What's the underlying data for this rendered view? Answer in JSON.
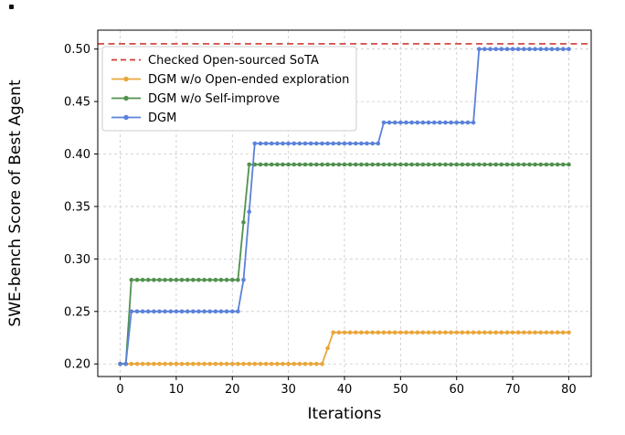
{
  "chart_data": {
    "type": "line",
    "title": "",
    "xlabel": "Iterations",
    "ylabel": "SWE-bench Score of Best Agent",
    "xlim": [
      -4,
      84
    ],
    "ylim": [
      0.188,
      0.518
    ],
    "xticks": [
      0,
      10,
      20,
      30,
      40,
      50,
      60,
      70,
      80
    ],
    "yticks": [
      0.2,
      0.25,
      0.3,
      0.35,
      0.4,
      0.45,
      0.5
    ],
    "grid": true,
    "legend_position": "upper left",
    "legend": [
      "Checked Open-sourced SoTA",
      "DGM w/o Open-ended exploration",
      "DGM w/o Self-improve",
      "DGM"
    ],
    "reference_line": {
      "label": "Checked Open-sourced SoTA",
      "value": 0.505,
      "color": "#cd3b34"
    },
    "x_range": [
      0,
      80
    ],
    "marker_every": 1,
    "series": [
      {
        "name": "DGM w/o Open-ended exploration",
        "color": "#e9a63c",
        "breakpoints": [
          [
            0,
            0.2
          ],
          [
            36,
            0.2
          ],
          [
            38,
            0.23
          ],
          [
            80,
            0.23
          ]
        ]
      },
      {
        "name": "DGM w/o Self-improve",
        "color": "#50914e",
        "breakpoints": [
          [
            0,
            0.2
          ],
          [
            1,
            0.2
          ],
          [
            2,
            0.28
          ],
          [
            21,
            0.28
          ],
          [
            23,
            0.39
          ],
          [
            80,
            0.39
          ]
        ]
      },
      {
        "name": "DGM",
        "color": "#5b82d9",
        "breakpoints": [
          [
            0,
            0.2
          ],
          [
            1,
            0.2
          ],
          [
            2,
            0.25
          ],
          [
            21,
            0.25
          ],
          [
            22,
            0.28
          ],
          [
            24,
            0.41
          ],
          [
            46,
            0.41
          ],
          [
            47,
            0.43
          ],
          [
            63,
            0.43
          ],
          [
            64,
            0.5
          ],
          [
            80,
            0.5
          ]
        ]
      }
    ],
    "style": {
      "grid_color": "#c9c9c9",
      "axis_color": "#000000",
      "legend_border": "#cccccc",
      "background": "#ffffff"
    }
  }
}
